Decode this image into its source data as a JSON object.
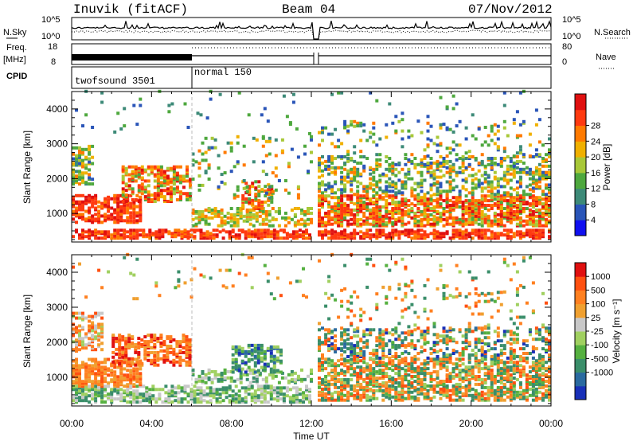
{
  "header": {
    "title": "Inuvik (fitACF)",
    "beam": "Beam 04",
    "date": "07/Nov/2012"
  },
  "side_labels": {
    "nsky": "N.Sky",
    "freq": "Freq.",
    "freq_unit": "[MHz]",
    "cpid": "CPID",
    "nsearch": "N.Search",
    "nave": "Nave"
  },
  "scales": {
    "nsky_top": "10^5",
    "nsky_bottom": "10^0",
    "freq_top": "18",
    "freq_bottom": "8",
    "nave_top": "80",
    "nave_bottom": "0"
  },
  "cpid_segments": [
    {
      "label": "twofsound 3501",
      "start_hour": 0,
      "end_hour": 6
    },
    {
      "label": "normal 150",
      "start_hour": 6,
      "end_hour": 24
    }
  ],
  "chart_data": [
    {
      "type": "heatmap",
      "name": "power",
      "ylabel": "Slant Range [km]",
      "ylim": [
        180,
        4500
      ],
      "y_ticks": [
        1000,
        2000,
        3000,
        4000
      ],
      "xlabel": "Time UT",
      "x_ticks": [
        "00:00",
        "04:00",
        "08:00",
        "12:00",
        "16:00",
        "20:00",
        "00:00"
      ],
      "colorbar": {
        "label": "Power [dB]",
        "ticks": [
          4,
          8,
          12,
          16,
          20,
          24,
          28
        ],
        "colors": [
          "#1010f0",
          "#2a55b8",
          "#3d8a78",
          "#4ea83e",
          "#a8c838",
          "#f0b000",
          "#ff7a00",
          "#ff3a10",
          "#e01010"
        ]
      }
    },
    {
      "type": "heatmap",
      "name": "velocity",
      "ylabel": "Slant Range [km]",
      "ylim": [
        180,
        4500
      ],
      "y_ticks": [
        1000,
        2000,
        3000,
        4000
      ],
      "xlabel": "Time UT",
      "x_ticks": [
        "00:00",
        "04:00",
        "08:00",
        "12:00",
        "16:00",
        "20:00",
        "00:00"
      ],
      "colorbar": {
        "label": "Velocity [m s⁻¹]",
        "ticks": [
          1000,
          500,
          100,
          25,
          -25,
          -100,
          -500,
          -1000
        ],
        "colors": [
          "#1830b8",
          "#2a6aa0",
          "#3a8e6a",
          "#55b040",
          "#a0d060",
          "#c8c8c8",
          "#f0a030",
          "#ff8020",
          "#ff5010",
          "#e01010"
        ]
      }
    }
  ]
}
